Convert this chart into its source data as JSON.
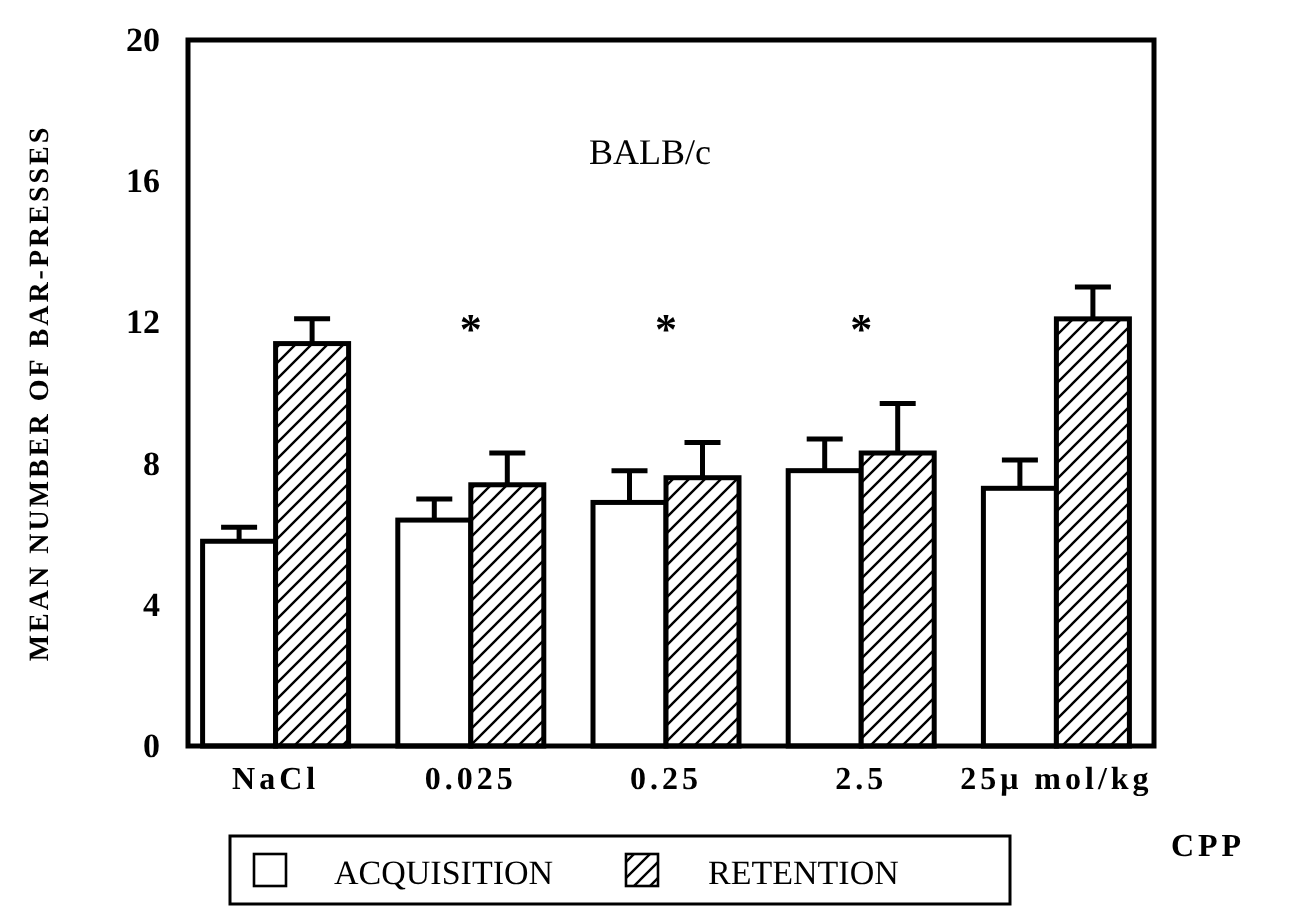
{
  "chart_data": {
    "type": "bar",
    "categories": [
      "NaCl",
      "0.025",
      "0.25",
      "2.5",
      "25μ mol/kg"
    ],
    "xlabel": "CPP",
    "ylabel": "MEAN NUMBER OF BAR-PRESSES",
    "ylim": [
      0,
      20
    ],
    "yticks": [
      0,
      4,
      8,
      12,
      16,
      20
    ],
    "legend": "bottom",
    "grid": false,
    "series": [
      {
        "name": "ACQUISITION",
        "color": "#ffffff",
        "values": [
          5.8,
          6.4,
          6.9,
          7.8,
          7.3
        ],
        "errors": [
          0.4,
          0.6,
          0.9,
          0.9,
          0.8
        ]
      },
      {
        "name": "RETENTION",
        "color": "#000000",
        "values": [
          11.4,
          7.4,
          7.6,
          8.3,
          12.1
        ],
        "errors": [
          0.7,
          0.9,
          1.0,
          1.4,
          0.9
        ]
      }
    ],
    "annotations": [
      "BALB/c",
      "*",
      "*",
      "*"
    ]
  }
}
